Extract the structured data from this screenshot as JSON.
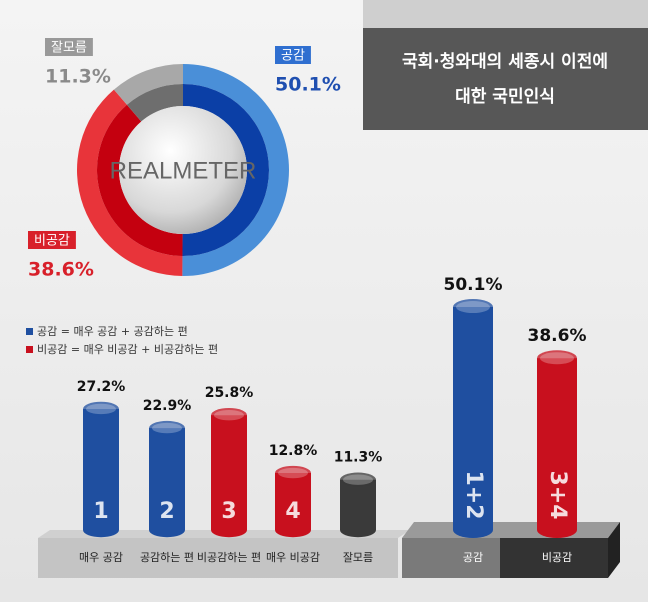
{
  "title_lines": [
    "국회·청와대의 세종시 이전에",
    "대한 국민인식"
  ],
  "logo": "REALMETER",
  "chart_data": [
    {
      "type": "pie",
      "categories": [
        "공감",
        "비공감",
        "잘모름"
      ],
      "values": [
        50.1,
        38.6,
        11.3
      ],
      "value_labels": [
        "50.1%",
        "38.6%",
        "11.3%"
      ],
      "colors": [
        "#4a8fd8",
        "#e8343a",
        "#a8a8a8"
      ],
      "inner_colors": [
        "#0b3fa6",
        "#c4000f",
        "#6e6e6e"
      ]
    },
    {
      "type": "bar",
      "legend": [
        "공감 = 매우 공감 + 공감하는 편",
        "비공감 = 매우 비공감 + 비공감하는 편"
      ],
      "legend_colors": [
        "#1f4fa0",
        "#c8101e"
      ],
      "categories": [
        "매우 공감",
        "공감하는 편",
        "비공감하는 편",
        "매우 비공감",
        "잘모름"
      ],
      "values": [
        27.2,
        22.9,
        25.8,
        12.8,
        11.3
      ],
      "value_labels": [
        "27.2%",
        "22.9%",
        "25.8%",
        "12.8%",
        "11.3%"
      ],
      "bar_labels": [
        "1",
        "2",
        "3",
        "4",
        null
      ],
      "colors": [
        "#1f4fa0",
        "#1f4fa0",
        "#c8101e",
        "#c8101e",
        "#3a3a3a"
      ]
    },
    {
      "type": "bar",
      "categories": [
        "공감",
        "비공감"
      ],
      "values": [
        50.1,
        38.6
      ],
      "value_labels": [
        "50.1%",
        "38.6%"
      ],
      "bar_labels": [
        "1+2",
        "3+4"
      ],
      "colors": [
        "#1f4fa0",
        "#c8101e"
      ]
    }
  ]
}
